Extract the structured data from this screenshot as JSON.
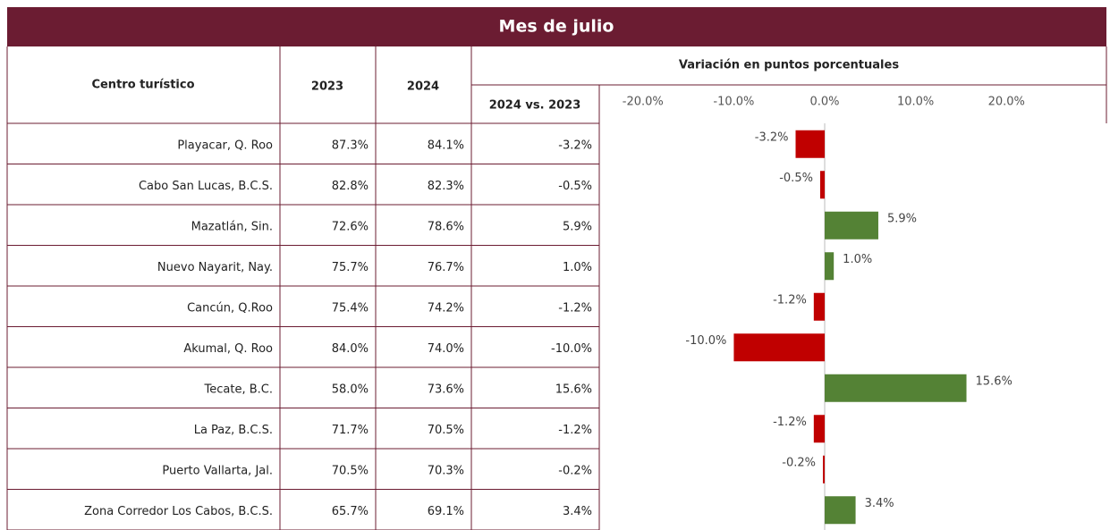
{
  "header": {
    "title": "Mes de julio"
  },
  "table": {
    "columns": [
      "Centro turístico",
      "2023",
      "2024"
    ],
    "group_header": "Variación en puntos porcentuales",
    "sub_header": "2024 vs. 2023",
    "rows": [
      [
        "Playacar, Q. Roo",
        "87.3%",
        "84.1%"
      ],
      [
        "Cabo San Lucas, B.C.S.",
        "82.8%",
        "82.3%"
      ],
      [
        "Mazatlán, Sin.",
        "72.6%",
        "78.6%"
      ],
      [
        "Nuevo Nayarit, Nay.",
        "75.7%",
        "76.7%"
      ],
      [
        "Cancún, Q.Roo",
        "75.4%",
        "74.2%"
      ],
      [
        "Akumal, Q. Roo",
        "84.0%",
        "74.0%"
      ],
      [
        "Tecate, B.C.",
        "58.0%",
        "73.6%"
      ],
      [
        "La Paz, B.C.S.",
        "71.7%",
        "70.5%"
      ],
      [
        "Puerto Vallarta, Jal.",
        "70.5%",
        "70.3%"
      ],
      [
        "Zona Corredor Los Cabos, B.C.S.",
        "65.7%",
        "69.1%"
      ]
    ]
  },
  "chart_data": {
    "type": "bar",
    "orientation": "horizontal",
    "values": [
      -3.2,
      -0.5,
      5.9,
      1.0,
      -1.2,
      -10.0,
      15.6,
      -1.2,
      -0.2,
      3.4
    ],
    "value_labels": [
      "-3.2%",
      "-0.5%",
      "5.9%",
      "1.0%",
      "-1.2%",
      "-10.0%",
      "15.6%",
      "-1.2%",
      "-0.2%",
      "3.4%"
    ],
    "xlim": [
      -25,
      31
    ],
    "xticks": [
      {
        "value": -20,
        "label": "-20.0%"
      },
      {
        "value": -10,
        "label": "-10.0%"
      },
      {
        "value": 0,
        "label": "0.0%"
      },
      {
        "value": 10,
        "label": "10.0%"
      },
      {
        "value": 20,
        "label": "20.0%"
      }
    ],
    "colors": {
      "negative": "#c00000",
      "positive": "#548235"
    }
  }
}
